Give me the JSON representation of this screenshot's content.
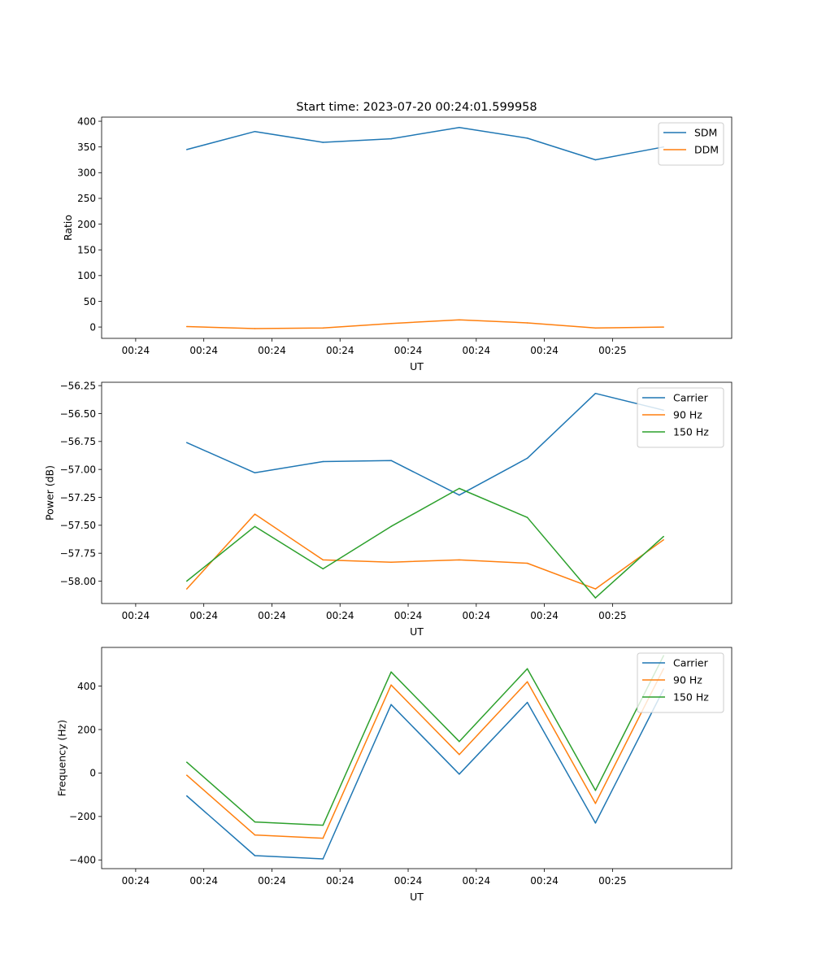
{
  "chart_data": [
    {
      "type": "line",
      "title": "Start time: 2023-07-20 00:24:01.599958",
      "xlabel": "UT",
      "ylabel": "Ratio",
      "xticklabels": [
        "00:24",
        "00:24",
        "00:24",
        "00:24",
        "00:24",
        "00:24",
        "00:24",
        "00:25"
      ],
      "xlim": [
        -0.5,
        8.75
      ],
      "ylim": [
        -22,
        408
      ],
      "yticks": [
        0,
        50,
        100,
        150,
        200,
        250,
        300,
        350,
        400
      ],
      "yticklabels": [
        "0",
        "50",
        "100",
        "150",
        "200",
        "250",
        "300",
        "350",
        "400"
      ],
      "x": [
        0.75,
        1.75,
        2.75,
        3.75,
        4.75,
        5.75,
        6.75,
        7.75
      ],
      "legend_position": "top-right",
      "series": [
        {
          "name": "SDM",
          "color": "#1f77b4",
          "values": [
            345,
            380,
            359,
            366,
            388,
            367,
            325,
            350
          ]
        },
        {
          "name": "DDM",
          "color": "#ff7f0e",
          "values": [
            1,
            -3,
            -2,
            7,
            14,
            8,
            -2,
            0
          ]
        }
      ]
    },
    {
      "type": "line",
      "title": "",
      "xlabel": "UT",
      "ylabel": "Power (dB)",
      "xticklabels": [
        "00:24",
        "00:24",
        "00:24",
        "00:24",
        "00:24",
        "00:24",
        "00:24",
        "00:25"
      ],
      "xlim": [
        -0.5,
        8.75
      ],
      "ylim": [
        -58.2,
        -56.22
      ],
      "yticks": [
        -58.0,
        -57.75,
        -57.5,
        -57.25,
        -57.0,
        -56.75,
        -56.5,
        -56.25
      ],
      "yticklabels": [
        "−58.00",
        "−57.75",
        "−57.50",
        "−57.25",
        "−57.00",
        "−56.75",
        "−56.50",
        "−56.25"
      ],
      "x": [
        0.75,
        1.75,
        2.75,
        3.75,
        4.75,
        5.75,
        6.75,
        7.75
      ],
      "legend_position": "top-right",
      "series": [
        {
          "name": "Carrier",
          "color": "#1f77b4",
          "values": [
            -56.76,
            -57.03,
            -56.93,
            -56.92,
            -57.23,
            -56.9,
            -56.32,
            -56.47
          ]
        },
        {
          "name": "90 Hz",
          "color": "#ff7f0e",
          "values": [
            -58.07,
            -57.4,
            -57.81,
            -57.83,
            -57.81,
            -57.84,
            -58.07,
            -57.63
          ]
        },
        {
          "name": "150 Hz",
          "color": "#2ca02c",
          "values": [
            -58.0,
            -57.51,
            -57.89,
            -57.51,
            -57.17,
            -57.43,
            -58.15,
            -57.6
          ]
        }
      ]
    },
    {
      "type": "line",
      "title": "",
      "xlabel": "UT",
      "ylabel": "Frequency (Hz)",
      "xticklabels": [
        "00:24",
        "00:24",
        "00:24",
        "00:24",
        "00:24",
        "00:24",
        "00:24",
        "00:25"
      ],
      "xlim": [
        -0.5,
        8.75
      ],
      "ylim": [
        -440,
        578
      ],
      "yticks": [
        -400,
        -200,
        0,
        200,
        400
      ],
      "yticklabels": [
        "−400",
        "−200",
        "0",
        "200",
        "400"
      ],
      "x": [
        0.75,
        1.75,
        2.75,
        3.75,
        4.75,
        5.75,
        6.75,
        7.75
      ],
      "legend_position": "top-right",
      "series": [
        {
          "name": "Carrier",
          "color": "#1f77b4",
          "values": [
            -105,
            -380,
            -395,
            315,
            -5,
            325,
            -230,
            385
          ]
        },
        {
          "name": "90 Hz",
          "color": "#ff7f0e",
          "values": [
            -10,
            -285,
            -300,
            405,
            85,
            420,
            -140,
            480
          ]
        },
        {
          "name": "150 Hz",
          "color": "#2ca02c",
          "values": [
            50,
            -225,
            -240,
            465,
            145,
            480,
            -80,
            540
          ]
        }
      ]
    }
  ]
}
